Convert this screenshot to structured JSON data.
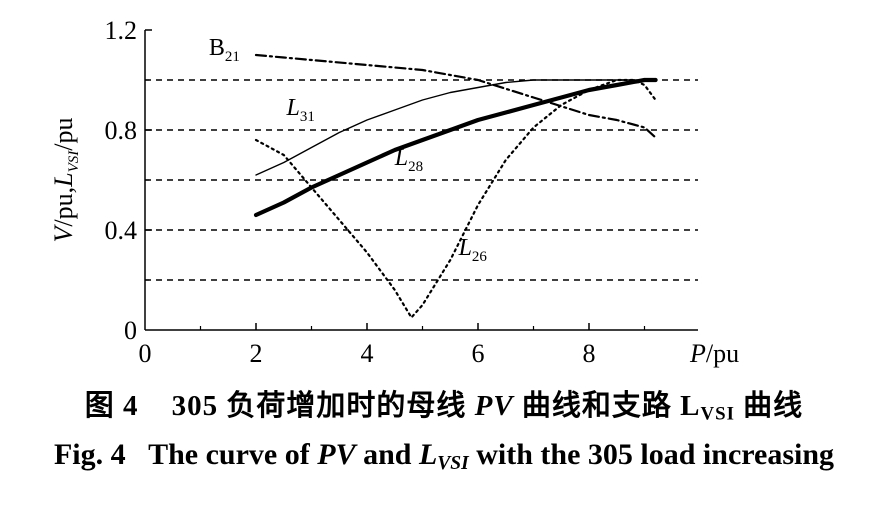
{
  "chart_data": {
    "type": "line",
    "xlabel_var": "P",
    "xlabel_unit": "/pu",
    "ylabel_var1": "V",
    "ylabel_mid": "/pu,",
    "ylabel_var2": "L",
    "ylabel_sub": "VSI",
    "ylabel_unit": "/pu",
    "xlim": [
      0,
      10
    ],
    "ylim": [
      0,
      1.2
    ],
    "xticks": [
      0,
      2,
      4,
      6,
      8
    ],
    "xtick_labels": [
      "0",
      "2",
      "4",
      "6",
      "8"
    ],
    "yticks": [
      0,
      0.4,
      0.8,
      1.2
    ],
    "ytick_labels": [
      "0",
      "0.4",
      "0.8",
      "1.2"
    ],
    "gridlines_y": [
      0.2,
      0.4,
      0.6,
      0.8,
      1.0
    ],
    "grid": "horizontal dashed",
    "series": [
      {
        "name": "B",
        "name_sub": "21",
        "style": "dash-dot",
        "x": [
          2.0,
          2.5,
          3.0,
          4.0,
          5.0,
          6.0,
          7.0,
          8.0,
          8.5,
          9.0,
          9.2
        ],
        "y": [
          1.1,
          1.09,
          1.08,
          1.06,
          1.04,
          1.0,
          0.93,
          0.86,
          0.84,
          0.81,
          0.77
        ]
      },
      {
        "name": "L",
        "name_sub": "31",
        "style": "thin",
        "x": [
          2.0,
          2.5,
          3.0,
          3.5,
          4.0,
          4.5,
          5.0,
          5.5,
          6.0,
          6.5,
          7.0,
          7.5,
          8.0,
          8.5,
          9.0,
          9.2
        ],
        "y": [
          0.62,
          0.67,
          0.73,
          0.79,
          0.84,
          0.88,
          0.92,
          0.95,
          0.97,
          0.99,
          1.0,
          1.0,
          1.0,
          1.0,
          1.0,
          1.0
        ]
      },
      {
        "name": "L",
        "name_sub": "28",
        "style": "thick",
        "x": [
          2.0,
          2.5,
          3.0,
          3.5,
          4.0,
          4.5,
          5.0,
          5.5,
          6.0,
          6.5,
          7.0,
          7.5,
          8.0,
          8.5,
          9.0,
          9.2
        ],
        "y": [
          0.46,
          0.51,
          0.57,
          0.62,
          0.67,
          0.72,
          0.76,
          0.8,
          0.84,
          0.87,
          0.9,
          0.93,
          0.96,
          0.98,
          1.0,
          1.0
        ]
      },
      {
        "name": "L",
        "name_sub": "26",
        "style": "dotted",
        "x": [
          2.0,
          2.5,
          3.0,
          3.5,
          4.0,
          4.5,
          4.8,
          5.0,
          5.5,
          6.0,
          6.5,
          7.0,
          7.5,
          8.0,
          8.5,
          8.8,
          9.0,
          9.2
        ],
        "y": [
          0.76,
          0.7,
          0.57,
          0.44,
          0.31,
          0.16,
          0.05,
          0.1,
          0.28,
          0.5,
          0.68,
          0.81,
          0.9,
          0.96,
          1.0,
          1.0,
          0.98,
          0.92
        ]
      }
    ],
    "labels": [
      {
        "name": "B",
        "sub": "21",
        "x": 1.15,
        "y": 1.1
      },
      {
        "name": "L",
        "sub": "31",
        "x": 2.55,
        "y": 0.86
      },
      {
        "name": "L",
        "sub": "28",
        "x": 4.5,
        "y": 0.66
      },
      {
        "name": "L",
        "sub": "26",
        "x": 5.65,
        "y": 0.3
      }
    ]
  },
  "caption": {
    "zh_prefix": "图 4",
    "zh_num": "305",
    "zh_text1": "负荷增加时的母线",
    "zh_pv": "PV",
    "zh_text2": "曲线和支路",
    "zh_l": "L",
    "zh_l_sub": "VSI",
    "zh_text3": "曲线",
    "en_prefix": "Fig. 4",
    "en_text1": "The curve of",
    "en_pv": "PV",
    "en_and": "and",
    "en_l": "L",
    "en_l_sub": "VSI",
    "en_text2": "with the 305 load increasing"
  }
}
